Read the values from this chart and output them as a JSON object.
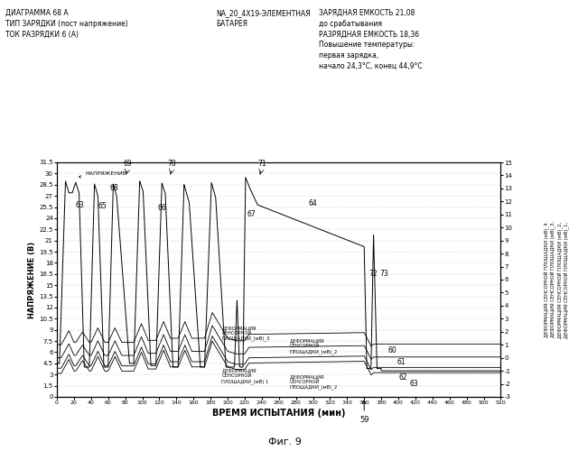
{
  "title_left": "ДИАГРАММА 68 А\nТИП ЗАРЯДКИ (пост напряжение)\nТОК РАЗРЯДКИ 6 (А)",
  "title_center": "NA_20_4X19-ЭЛЕМЕНТНАЯ\nБАТАРЕЯ",
  "title_right": "ЗАРЯДНАЯ ЕМКОСТЬ 21,08\nдо срабатывания\nРАЗРЯДНАЯ ЕМКОСТЬ 18,36\nПовышение температуры:\nпервая зарядка,\nначало 24,3°С, конец 44,9°С",
  "xlabel": "ВРЕМЯ ИСПЫТАНИЯ (мин)",
  "ylabel_left": "НАПРЯЖЕНИЕ (В)",
  "fig_label": "Фиг. 9",
  "xlim": [
    0,
    520
  ],
  "ylim_left": [
    0,
    31.5
  ],
  "ylim_right": [
    -3,
    15
  ],
  "xticks": [
    0,
    20,
    40,
    60,
    80,
    100,
    120,
    140,
    160,
    180,
    200,
    220,
    240,
    260,
    280,
    300,
    320,
    340,
    360,
    380,
    400,
    420,
    440,
    460,
    480,
    500,
    520
  ],
  "yticks_left": [
    0,
    1.5,
    3,
    4.5,
    6,
    7.5,
    9,
    10.5,
    12,
    13.5,
    15,
    16.5,
    18,
    19.5,
    21,
    22.5,
    24,
    25.5,
    27,
    28.5,
    30,
    31.5
  ],
  "yticks_right": [
    -3,
    -2,
    -1,
    0,
    1,
    2,
    3,
    4,
    5,
    6,
    7,
    8,
    9,
    10,
    11,
    12,
    13,
    14,
    15
  ],
  "bg_color": "#ffffff",
  "line_color": "#000000",
  "grid_color": "#999999"
}
